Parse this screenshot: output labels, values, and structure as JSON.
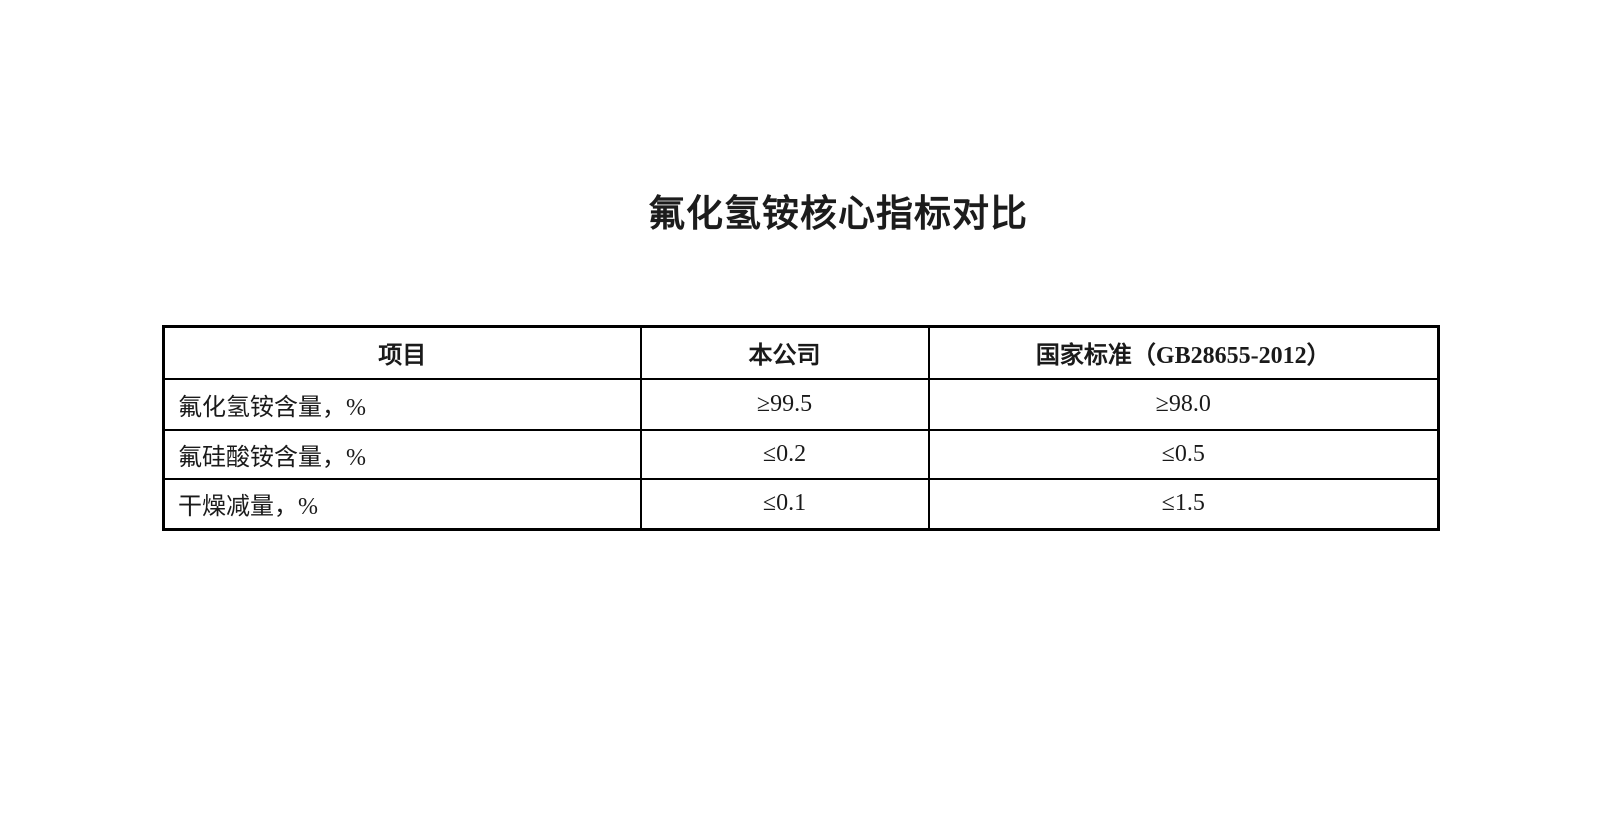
{
  "page": {
    "title": "氟化氢铵核心指标对比"
  },
  "table": {
    "headers": [
      "项目",
      "本公司",
      "国家标准（GB28655-2012）"
    ],
    "rows": [
      [
        "氟化氢铵含量，%",
        "≥99.5",
        "≥98.0"
      ],
      [
        "氟硅酸铵含量，%",
        "≤0.2",
        "≤0.5"
      ],
      [
        "干燥减量，%",
        "≤0.1",
        "≤1.5"
      ]
    ]
  },
  "colors": {
    "text": "#1a1a1a",
    "border": "#000000",
    "background": "#ffffff"
  }
}
